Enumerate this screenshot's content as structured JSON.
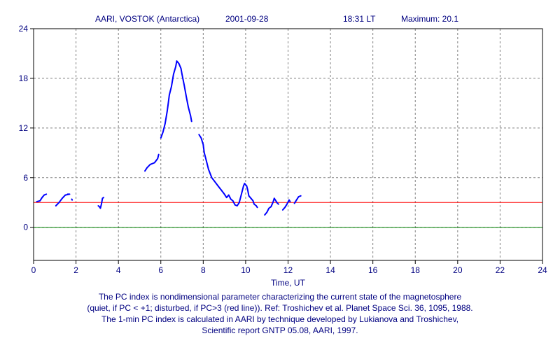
{
  "header": {
    "station": "AARI, VOSTOK (Antarctica)",
    "date": "2001-09-28",
    "time": "18:31 LT",
    "maximum": "Maximum: 20.1"
  },
  "caption": {
    "line1": "The PC index is nondimensional parameter characterizing the current state of the magnetosphere",
    "line2": "(quiet, if PC < +1; disturbed, if PC>3 (red line)).  Ref: Troshichev et al. Planet Space Sci. 36, 1095, 1988.",
    "line3": "The 1-min PC index is calculated in AARI by technique developed by Lukianova and Troshichev,",
    "line4": "Scientific report GNTP 05.08, AARI, 1997."
  },
  "colors": {
    "series": "#0000ff",
    "threshold": "#ff0000",
    "zero_line": "#008000",
    "text": "#000080",
    "grid": "#808080"
  },
  "chart_data": {
    "type": "line",
    "xlabel": "Time, UT",
    "ylabel": "",
    "xlim": [
      0,
      24
    ],
    "ylim": [
      -4,
      24
    ],
    "x_ticks": [
      0,
      2,
      4,
      6,
      8,
      10,
      12,
      14,
      16,
      18,
      20,
      22,
      24
    ],
    "y_ticks": [
      0,
      6,
      12,
      18,
      24
    ],
    "grid": true,
    "threshold_line": {
      "label": "PC>3 (red line)",
      "y": 3,
      "color": "#ff0000"
    },
    "zero_line": {
      "y": 0,
      "color": "#008000"
    },
    "series": [
      {
        "segments": [
          [
            [
              0.15,
              3.1
            ],
            [
              0.3,
              3.2
            ],
            [
              0.4,
              3.6
            ],
            [
              0.5,
              3.9
            ],
            [
              0.6,
              4.0
            ]
          ],
          [
            [
              1.05,
              2.6
            ],
            [
              1.2,
              3.0
            ],
            [
              1.35,
              3.5
            ],
            [
              1.5,
              3.9
            ],
            [
              1.7,
              4.0
            ],
            [
              1.6,
              4.0
            ]
          ],
          [
            [
              1.8,
              3.4
            ],
            [
              1.82,
              3.3
            ]
          ],
          [
            [
              3.05,
              2.6
            ],
            [
              3.1,
              2.5
            ],
            [
              3.15,
              2.3
            ],
            [
              3.2,
              2.8
            ],
            [
              3.25,
              3.5
            ],
            [
              3.3,
              3.6
            ]
          ],
          [
            [
              5.25,
              6.8
            ],
            [
              5.35,
              7.2
            ],
            [
              5.5,
              7.6
            ],
            [
              5.7,
              7.8
            ],
            [
              5.85,
              8.3
            ],
            [
              5.9,
              8.8
            ]
          ],
          [
            [
              6.0,
              10.8
            ],
            [
              6.1,
              11.5
            ],
            [
              6.2,
              12.5
            ],
            [
              6.3,
              14.0
            ],
            [
              6.35,
              15.0
            ],
            [
              6.4,
              16.0
            ],
            [
              6.5,
              17.0
            ],
            [
              6.6,
              18.5
            ],
            [
              6.7,
              19.4
            ],
            [
              6.75,
              20.1
            ],
            [
              6.85,
              19.8
            ],
            [
              6.95,
              19.2
            ],
            [
              7.0,
              18.5
            ],
            [
              7.1,
              17.2
            ],
            [
              7.2,
              15.8
            ],
            [
              7.3,
              14.5
            ],
            [
              7.4,
              13.5
            ],
            [
              7.45,
              12.8
            ]
          ],
          [
            [
              7.8,
              11.2
            ],
            [
              7.9,
              10.8
            ],
            [
              8.0,
              10.0
            ],
            [
              8.05,
              9.0
            ],
            [
              8.15,
              8.0
            ],
            [
              8.25,
              7.0
            ],
            [
              8.4,
              6.0
            ],
            [
              8.55,
              5.5
            ],
            [
              8.7,
              5.0
            ],
            [
              8.85,
              4.5
            ],
            [
              9.0,
              4.0
            ],
            [
              9.1,
              3.6
            ],
            [
              9.2,
              3.9
            ],
            [
              9.3,
              3.4
            ],
            [
              9.4,
              3.2
            ],
            [
              9.5,
              2.7
            ],
            [
              9.6,
              2.6
            ],
            [
              9.7,
              3.0
            ],
            [
              9.8,
              4.0
            ],
            [
              9.9,
              5.0
            ],
            [
              9.95,
              5.3
            ],
            [
              10.05,
              5.0
            ],
            [
              10.1,
              4.5
            ],
            [
              10.15,
              3.8
            ],
            [
              10.25,
              3.5
            ],
            [
              10.35,
              3.2
            ],
            [
              10.4,
              2.8
            ],
            [
              10.5,
              2.6
            ],
            [
              10.55,
              2.4
            ]
          ],
          [
            [
              10.9,
              1.5
            ],
            [
              11.0,
              1.8
            ],
            [
              11.1,
              2.3
            ],
            [
              11.2,
              2.5
            ],
            [
              11.3,
              3.1
            ],
            [
              11.35,
              3.5
            ],
            [
              11.4,
              3.3
            ],
            [
              11.5,
              2.9
            ],
            [
              11.55,
              2.8
            ]
          ],
          [
            [
              11.75,
              2.1
            ],
            [
              11.85,
              2.4
            ],
            [
              11.95,
              2.8
            ],
            [
              12.05,
              3.3
            ],
            [
              12.1,
              3.1
            ]
          ],
          [
            [
              12.3,
              2.9
            ],
            [
              12.4,
              3.3
            ],
            [
              12.5,
              3.7
            ],
            [
              12.6,
              3.8
            ]
          ]
        ]
      }
    ]
  }
}
